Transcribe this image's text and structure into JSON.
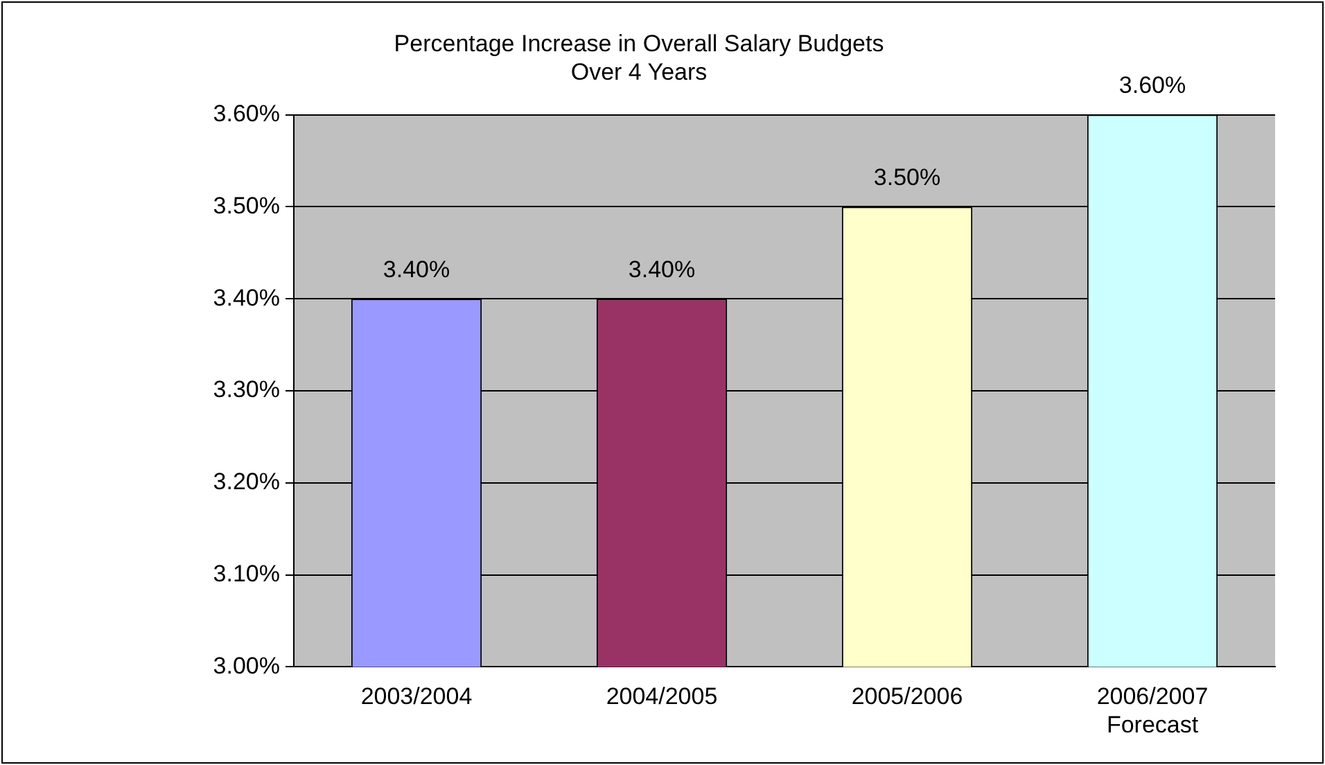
{
  "chart_data": {
    "type": "bar",
    "title": "Percentage Increase in Overall Salary Budgets\nOver 4 Years",
    "categories": [
      "2003/2004",
      "2004/2005",
      "2005/2006",
      "2006/2007\nForecast"
    ],
    "values": [
      3.4,
      3.4,
      3.5,
      3.6
    ],
    "colors": [
      "#9999ff",
      "#993366",
      "#ffffcc",
      "#ccffff"
    ],
    "value_labels": [
      "3.40%",
      "3.40%",
      "3.50%",
      "3.60%"
    ],
    "ylim": [
      3.0,
      3.6
    ],
    "yticks": [
      {
        "value": 3.0,
        "label": "3.00%"
      },
      {
        "value": 3.1,
        "label": "3.10%"
      },
      {
        "value": 3.2,
        "label": "3.20%"
      },
      {
        "value": 3.3,
        "label": "3.30%"
      },
      {
        "value": 3.4,
        "label": "3.40%"
      },
      {
        "value": 3.5,
        "label": "3.50%"
      },
      {
        "value": 3.6,
        "label": "3.60%"
      }
    ],
    "grid": "y",
    "legend": false
  }
}
